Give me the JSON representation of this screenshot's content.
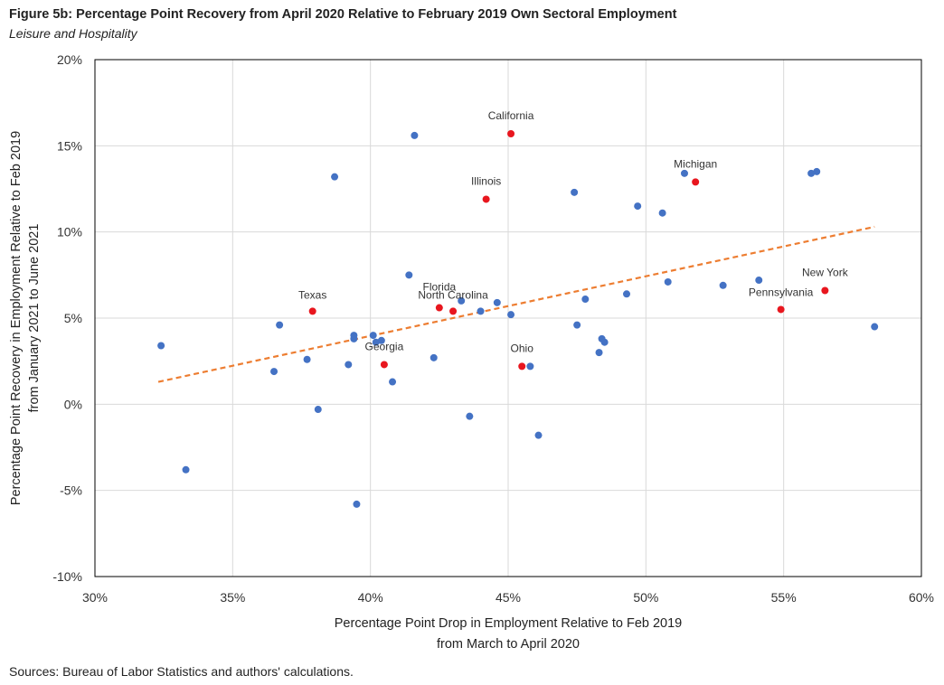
{
  "header": {
    "title": "Figure 5b: Percentage Point Recovery from April 2020 Relative to February 2019 Own Sectoral Employment",
    "subtitle": "Leisure and Hospitality"
  },
  "footer": {
    "source": "Sources: Bureau of Labor Statistics and authors' calculations."
  },
  "chart_data": {
    "type": "scatter",
    "xlabel_lines": [
      "Percentage Point Drop in Employment Relative to Feb 2019",
      "from March to April 2020"
    ],
    "ylabel_lines": [
      "Percentage Point Recovery in Employment Relative to Feb 2019",
      "from January 2021 to June 2021"
    ],
    "xlim": [
      30,
      60
    ],
    "ylim": [
      -10,
      20
    ],
    "x_ticks": [
      30,
      35,
      40,
      45,
      50,
      55,
      60
    ],
    "x_tick_labels": [
      "30%",
      "35%",
      "40%",
      "45%",
      "50%",
      "55%",
      "60%"
    ],
    "y_ticks": [
      -10,
      -5,
      0,
      5,
      10,
      15,
      20
    ],
    "y_tick_labels": [
      "-10%",
      "-5%",
      "0%",
      "5%",
      "10%",
      "15%",
      "20%"
    ],
    "grid": true,
    "colors": {
      "other": "#4472C4",
      "highlight": "#E8161E",
      "trend": "#ED7D31",
      "grid": "#D9D9D9",
      "axis": "#000000"
    },
    "trendline": {
      "style": "dashed",
      "x": [
        32.3,
        58.3
      ],
      "y": [
        1.3,
        10.3
      ]
    },
    "highlighted_points": [
      {
        "label": "California",
        "x": 45.1,
        "y": 15.7
      },
      {
        "label": "Michigan",
        "x": 51.8,
        "y": 12.9
      },
      {
        "label": "Illinois",
        "x": 44.2,
        "y": 11.9
      },
      {
        "label": "New York",
        "x": 56.5,
        "y": 6.6
      },
      {
        "label": "Pennsylvania",
        "x": 54.9,
        "y": 5.5
      },
      {
        "label": "Texas",
        "x": 37.9,
        "y": 5.4
      },
      {
        "label": "Florida",
        "x": 42.5,
        "y": 5.6
      },
      {
        "label": "North Carolina",
        "x": 43.0,
        "y": 5.4
      },
      {
        "label": "Georgia",
        "x": 40.5,
        "y": 2.3
      },
      {
        "label": "Ohio",
        "x": 45.5,
        "y": 2.2
      }
    ],
    "other_points": [
      {
        "x": 32.4,
        "y": 3.4
      },
      {
        "x": 33.3,
        "y": -3.8
      },
      {
        "x": 36.5,
        "y": 1.9
      },
      {
        "x": 36.7,
        "y": 4.6
      },
      {
        "x": 37.7,
        "y": 2.6
      },
      {
        "x": 38.1,
        "y": -0.3
      },
      {
        "x": 38.7,
        "y": 13.2
      },
      {
        "x": 39.2,
        "y": 2.3
      },
      {
        "x": 39.4,
        "y": 4.0
      },
      {
        "x": 39.4,
        "y": 3.8
      },
      {
        "x": 39.5,
        "y": -5.8
      },
      {
        "x": 40.1,
        "y": 4.0
      },
      {
        "x": 40.2,
        "y": 3.6
      },
      {
        "x": 40.4,
        "y": 3.7
      },
      {
        "x": 40.8,
        "y": 1.3
      },
      {
        "x": 41.4,
        "y": 7.5
      },
      {
        "x": 41.6,
        "y": 15.6
      },
      {
        "x": 42.3,
        "y": 2.7
      },
      {
        "x": 43.3,
        "y": 6.0
      },
      {
        "x": 43.6,
        "y": -0.7
      },
      {
        "x": 44.0,
        "y": 5.4
      },
      {
        "x": 44.6,
        "y": 5.9
      },
      {
        "x": 45.1,
        "y": 5.2
      },
      {
        "x": 45.8,
        "y": 2.2
      },
      {
        "x": 46.1,
        "y": -1.8
      },
      {
        "x": 47.4,
        "y": 12.3
      },
      {
        "x": 47.5,
        "y": 4.6
      },
      {
        "x": 47.8,
        "y": 6.1
      },
      {
        "x": 48.3,
        "y": 3.0
      },
      {
        "x": 48.4,
        "y": 3.8
      },
      {
        "x": 48.5,
        "y": 3.6
      },
      {
        "x": 49.3,
        "y": 6.4
      },
      {
        "x": 49.7,
        "y": 11.5
      },
      {
        "x": 50.6,
        "y": 11.1
      },
      {
        "x": 50.8,
        "y": 7.1
      },
      {
        "x": 51.4,
        "y": 13.4
      },
      {
        "x": 52.8,
        "y": 6.9
      },
      {
        "x": 54.1,
        "y": 7.2
      },
      {
        "x": 56.0,
        "y": 13.4
      },
      {
        "x": 56.2,
        "y": 13.5
      },
      {
        "x": 58.3,
        "y": 4.5
      }
    ]
  }
}
